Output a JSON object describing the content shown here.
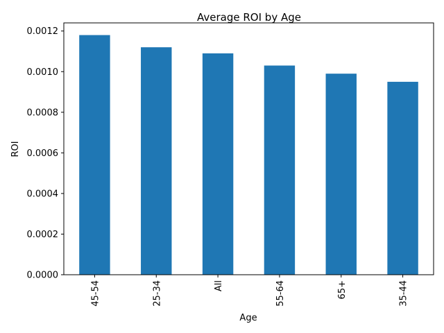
{
  "chart_data": {
    "type": "bar",
    "title": "Average ROI by Age",
    "xlabel": "Age",
    "ylabel": "ROI",
    "categories": [
      "45-54",
      "25-34",
      "All",
      "55-64",
      "65+",
      "35-44"
    ],
    "values": [
      0.00118,
      0.00112,
      0.00109,
      0.00103,
      0.00099,
      0.00095
    ],
    "ylim": [
      0,
      0.00124
    ],
    "yticks": [
      "0.0000",
      "0.0002",
      "0.0004",
      "0.0006",
      "0.0008",
      "0.0010",
      "0.0012"
    ],
    "ytick_values": [
      0,
      0.0002,
      0.0004,
      0.0006,
      0.0008,
      0.001,
      0.0012
    ],
    "bar_color": "#1f77b4",
    "grid": false,
    "legend": "none"
  }
}
